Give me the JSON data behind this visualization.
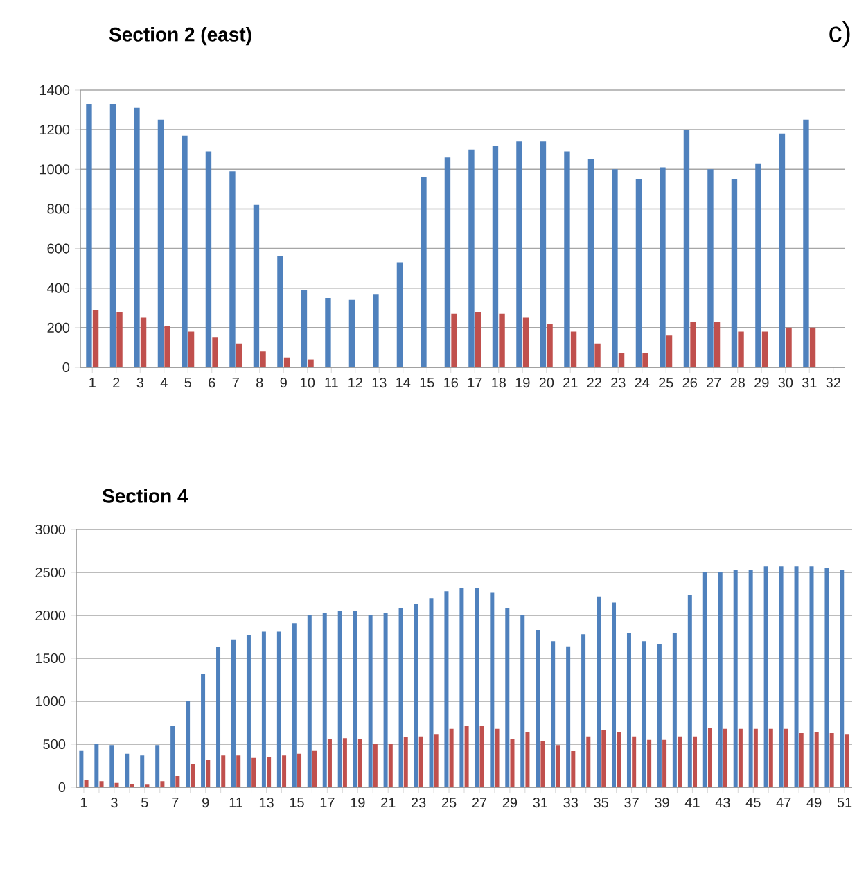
{
  "chart_data": [
    {
      "type": "bar",
      "title": "Section 2 (east)",
      "annotations": [
        "c)"
      ],
      "categories": [
        "1",
        "2",
        "3",
        "4",
        "5",
        "6",
        "7",
        "8",
        "9",
        "10",
        "11",
        "12",
        "13",
        "14",
        "15",
        "16",
        "17",
        "18",
        "19",
        "20",
        "21",
        "22",
        "23",
        "24",
        "25",
        "26",
        "27",
        "28",
        "29",
        "30",
        "31",
        "32"
      ],
      "series": [
        {
          "color": "#4f81bd",
          "values": [
            1330,
            1330,
            1310,
            1250,
            1170,
            1090,
            990,
            820,
            560,
            390,
            350,
            340,
            370,
            530,
            960,
            1060,
            1100,
            1120,
            1140,
            1140,
            1090,
            1050,
            1000,
            950,
            1010,
            1200,
            1000,
            950,
            1030,
            1180,
            1250,
            null
          ]
        },
        {
          "color": "#c0504d",
          "values": [
            290,
            280,
            250,
            210,
            180,
            150,
            120,
            80,
            50,
            40,
            null,
            null,
            null,
            null,
            null,
            270,
            280,
            270,
            250,
            220,
            180,
            120,
            70,
            70,
            160,
            230,
            230,
            180,
            180,
            200,
            200,
            null
          ]
        }
      ],
      "ylim": [
        0,
        1400
      ],
      "yticks": [
        0,
        200,
        400,
        600,
        800,
        1000,
        1200,
        1400
      ],
      "grid": "y"
    },
    {
      "type": "bar",
      "title": "Section 4",
      "categories": [
        "1",
        null,
        "3",
        null,
        "5",
        null,
        "7",
        null,
        "9",
        null,
        "11",
        null,
        "13",
        null,
        "15",
        null,
        "17",
        null,
        "19",
        null,
        "21",
        null,
        "23",
        null,
        "25",
        null,
        "27",
        null,
        "29",
        null,
        "31",
        null,
        "33",
        null,
        "35",
        null,
        "37",
        null,
        "39",
        null,
        "41",
        null,
        "43",
        null,
        "45",
        null,
        "47",
        null,
        "49",
        null,
        "51"
      ],
      "series": [
        {
          "color": "#4f81bd",
          "values": [
            430,
            500,
            490,
            390,
            370,
            490,
            710,
            1000,
            1320,
            1630,
            1720,
            1770,
            1810,
            1810,
            1910,
            2000,
            2030,
            2050,
            2050,
            2000,
            2030,
            2080,
            2130,
            2200,
            2280,
            2320,
            2320,
            2270,
            2080,
            2000,
            1830,
            1700,
            1640,
            1780,
            2220,
            2150,
            1790,
            1700,
            1670,
            1790,
            2240,
            2500,
            2500,
            2530,
            2530,
            2570,
            2570,
            2570,
            2570,
            2550,
            2530
          ]
        },
        {
          "color": "#c0504d",
          "values": [
            80,
            70,
            50,
            40,
            30,
            70,
            130,
            270,
            320,
            370,
            370,
            340,
            350,
            370,
            390,
            430,
            560,
            570,
            560,
            500,
            500,
            580,
            590,
            620,
            680,
            710,
            710,
            680,
            560,
            640,
            540,
            490,
            420,
            590,
            670,
            640,
            590,
            550,
            550,
            590,
            590,
            690,
            680,
            680,
            680,
            680,
            680,
            630,
            640,
            630,
            620
          ]
        }
      ],
      "ylim": [
        0,
        3000
      ],
      "yticks": [
        0,
        500,
        1000,
        1500,
        2000,
        2500,
        3000
      ],
      "grid": "y"
    }
  ]
}
